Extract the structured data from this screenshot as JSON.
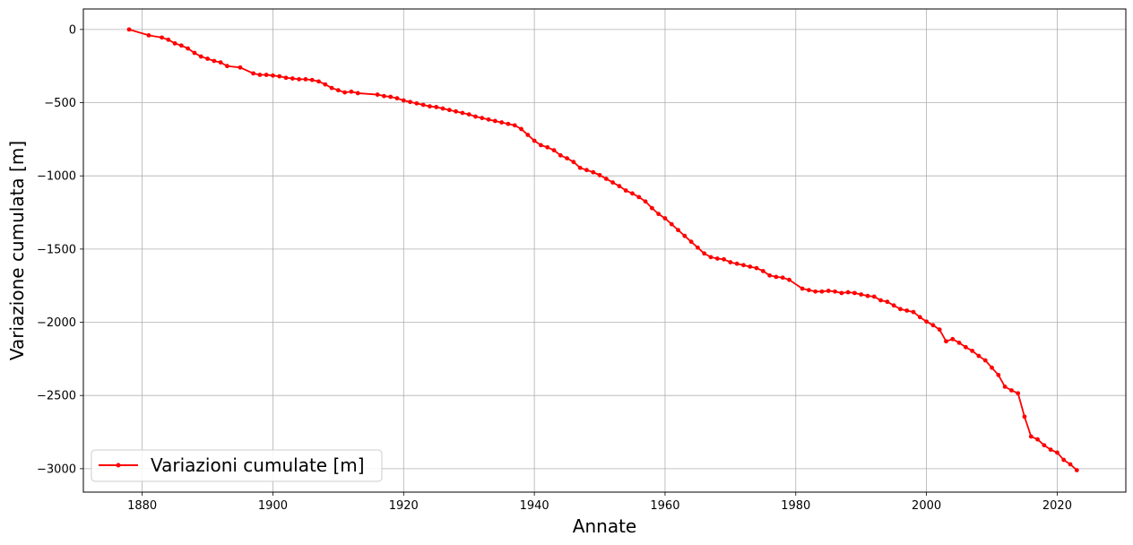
{
  "chart_data": {
    "type": "line",
    "xlabel": "Annate",
    "ylabel": "Variazione cumulata [m]",
    "xlim": [
      1871,
      2030.5
    ],
    "ylim": [
      -3160,
      140
    ],
    "xticks": [
      1880,
      1900,
      1920,
      1940,
      1960,
      1980,
      2000,
      2020
    ],
    "yticks": [
      0,
      -500,
      -1000,
      -1500,
      -2000,
      -2500,
      -3000
    ],
    "grid": true,
    "legend": {
      "position": "lower-left"
    },
    "colors": {
      "line": "#ff0000"
    },
    "series": [
      {
        "name": "Variazioni cumulate [m]",
        "marker": "circle",
        "x": [
          1878,
          1881,
          1883,
          1884,
          1885,
          1886,
          1887,
          1888,
          1889,
          1890,
          1891,
          1892,
          1893,
          1895,
          1897,
          1898,
          1899,
          1900,
          1901,
          1902,
          1903,
          1904,
          1905,
          1906,
          1907,
          1908,
          1909,
          1910,
          1911,
          1912,
          1913,
          1916,
          1917,
          1918,
          1919,
          1920,
          1921,
          1922,
          1923,
          1924,
          1925,
          1926,
          1927,
          1928,
          1929,
          1930,
          1931,
          1932,
          1933,
          1934,
          1935,
          1936,
          1937,
          1938,
          1939,
          1940,
          1941,
          1942,
          1943,
          1944,
          1945,
          1946,
          1947,
          1948,
          1949,
          1950,
          1951,
          1952,
          1953,
          1954,
          1955,
          1956,
          1957,
          1958,
          1959,
          1960,
          1961,
          1962,
          1963,
          1964,
          1965,
          1966,
          1967,
          1968,
          1969,
          1970,
          1971,
          1972,
          1973,
          1974,
          1975,
          1976,
          1977,
          1978,
          1979,
          1981,
          1982,
          1983,
          1984,
          1985,
          1986,
          1987,
          1988,
          1989,
          1990,
          1991,
          1992,
          1993,
          1994,
          1995,
          1996,
          1997,
          1998,
          1999,
          2000,
          2001,
          2002,
          2003,
          2004,
          2005,
          2006,
          2007,
          2008,
          2009,
          2010,
          2011,
          2012,
          2013,
          2014,
          2015,
          2016,
          2017,
          2018,
          2019,
          2020,
          2021,
          2022,
          2023
        ],
        "y": [
          0,
          -40,
          -55,
          -70,
          -95,
          -110,
          -130,
          -160,
          -185,
          -200,
          -215,
          -225,
          -250,
          -260,
          -300,
          -310,
          -310,
          -315,
          -320,
          -330,
          -335,
          -340,
          -340,
          -345,
          -355,
          -375,
          -400,
          -415,
          -430,
          -425,
          -435,
          -445,
          -455,
          -460,
          -470,
          -485,
          -495,
          -505,
          -515,
          -525,
          -530,
          -540,
          -550,
          -560,
          -570,
          -580,
          -595,
          -605,
          -615,
          -625,
          -635,
          -645,
          -655,
          -680,
          -720,
          -760,
          -790,
          -805,
          -825,
          -860,
          -880,
          -905,
          -945,
          -960,
          -975,
          -995,
          -1020,
          -1045,
          -1070,
          -1100,
          -1120,
          -1145,
          -1175,
          -1220,
          -1260,
          -1290,
          -1330,
          -1370,
          -1410,
          -1450,
          -1490,
          -1530,
          -1555,
          -1565,
          -1570,
          -1590,
          -1600,
          -1610,
          -1620,
          -1630,
          -1650,
          -1680,
          -1690,
          -1695,
          -1710,
          -1770,
          -1780,
          -1790,
          -1790,
          -1785,
          -1790,
          -1800,
          -1795,
          -1800,
          -1810,
          -1820,
          -1825,
          -1850,
          -1860,
          -1885,
          -1910,
          -1920,
          -1930,
          -1965,
          -1995,
          -2020,
          -2050,
          -2130,
          -2115,
          -2140,
          -2170,
          -2195,
          -2230,
          -2260,
          -2310,
          -2360,
          -2440,
          -2465,
          -2485,
          -2645,
          -2780,
          -2800,
          -2840,
          -2870,
          -2890,
          -2940,
          -2970,
          -3010
        ]
      }
    ]
  }
}
